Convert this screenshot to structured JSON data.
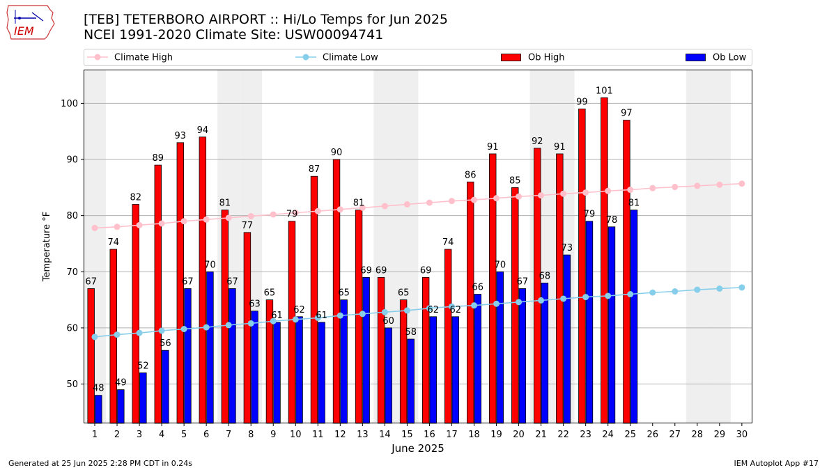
{
  "header": {
    "title_line1": "[TEB] TETERBORO AIRPORT :: Hi/Lo Temps for Jun 2025",
    "title_line2": "NCEI 1991-2020 Climate Site: USW00094741",
    "logo_text": "IEM"
  },
  "footer": {
    "generated": "Generated at 25 Jun 2025 2:28 PM CDT in 0.24s",
    "app": "IEM Autoplot App #17"
  },
  "colors": {
    "ob_high": "#ff0000",
    "ob_low": "#0000ff",
    "climate_high": "#ffc0cb",
    "climate_low": "#87ceeb",
    "weekend_shade": "#efefef",
    "grid": "#b0b0b0"
  },
  "chart_data": {
    "type": "bar",
    "xlabel": "June 2025",
    "ylabel": "Temperature °F",
    "ylim": [
      43,
      106
    ],
    "yticks": [
      50,
      60,
      70,
      80,
      90,
      100
    ],
    "grid": "horizontal",
    "legend_placement": "top, above plot",
    "categories": [
      1,
      2,
      3,
      4,
      5,
      6,
      7,
      8,
      9,
      10,
      11,
      12,
      13,
      14,
      15,
      16,
      17,
      18,
      19,
      20,
      21,
      22,
      23,
      24,
      25,
      26,
      27,
      28,
      29,
      30
    ],
    "weekend_days": [
      1,
      7,
      8,
      14,
      15,
      21,
      22,
      28,
      29
    ],
    "series": [
      {
        "name": "Climate High",
        "kind": "line",
        "values": [
          77.8,
          78.0,
          78.3,
          78.6,
          79.0,
          79.3,
          79.6,
          79.9,
          80.2,
          80.5,
          80.8,
          81.1,
          81.4,
          81.7,
          82.0,
          82.3,
          82.6,
          82.8,
          83.1,
          83.4,
          83.6,
          83.9,
          84.1,
          84.4,
          84.6,
          84.9,
          85.1,
          85.3,
          85.5,
          85.7
        ]
      },
      {
        "name": "Climate Low",
        "kind": "line",
        "values": [
          58.4,
          58.8,
          59.1,
          59.5,
          59.8,
          60.1,
          60.5,
          60.8,
          61.2,
          61.5,
          61.8,
          62.2,
          62.5,
          62.8,
          63.1,
          63.5,
          63.8,
          64.0,
          64.3,
          64.6,
          64.9,
          65.2,
          65.5,
          65.7,
          66.0,
          66.3,
          66.5,
          66.8,
          67.0,
          67.2
        ]
      },
      {
        "name": "Ob High",
        "kind": "bar",
        "values": [
          67,
          74,
          82,
          89,
          93,
          94,
          81,
          77,
          65,
          79,
          87,
          90,
          81,
          69,
          65,
          69,
          74,
          86,
          91,
          85,
          92,
          91,
          99,
          101,
          97,
          null,
          null,
          null,
          null,
          null
        ]
      },
      {
        "name": "Ob Low",
        "kind": "bar",
        "values": [
          48,
          49,
          52,
          56,
          67,
          70,
          67,
          63,
          61,
          62,
          61,
          65,
          69,
          60,
          58,
          62,
          62,
          66,
          70,
          67,
          68,
          73,
          79,
          78,
          81,
          null,
          null,
          null,
          null,
          null
        ]
      }
    ]
  }
}
